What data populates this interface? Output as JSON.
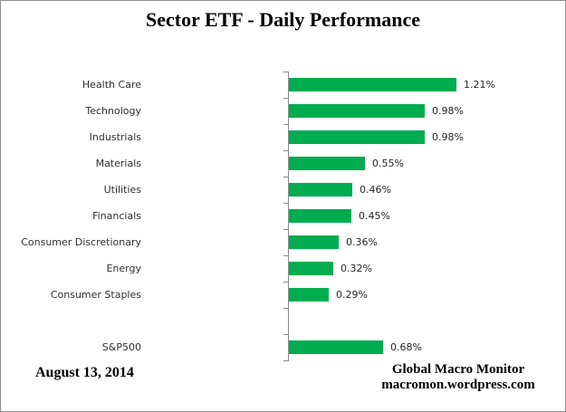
{
  "title": "Sector ETF - Daily Performance",
  "footer": {
    "date": "August 13, 2014",
    "source_line1": "Global Macro Monitor",
    "source_line2": "macromon.wordpress.com"
  },
  "chart_data": {
    "type": "bar",
    "orientation": "horizontal",
    "title": "Sector ETF - Daily Performance",
    "xlabel": "",
    "ylabel": "",
    "categories": [
      "Health Care",
      "Technology",
      "Industrials",
      "Materials",
      "Utilities",
      "Financials",
      "Consumer Discretionary",
      "Energy",
      "Consumer Staples",
      "",
      "S&P500"
    ],
    "values": [
      1.21,
      0.98,
      0.98,
      0.55,
      0.46,
      0.45,
      0.36,
      0.32,
      0.29,
      null,
      0.68
    ],
    "value_labels": [
      "1.21%",
      "0.98%",
      "0.98%",
      "0.55%",
      "0.46%",
      "0.45%",
      "0.36%",
      "0.32%",
      "0.29%",
      "",
      "0.68%"
    ],
    "unit": "%",
    "data_labels": true,
    "grid": false,
    "legend": false,
    "bar_color": "#00AC50",
    "axis_color": "#8C8C8C"
  }
}
